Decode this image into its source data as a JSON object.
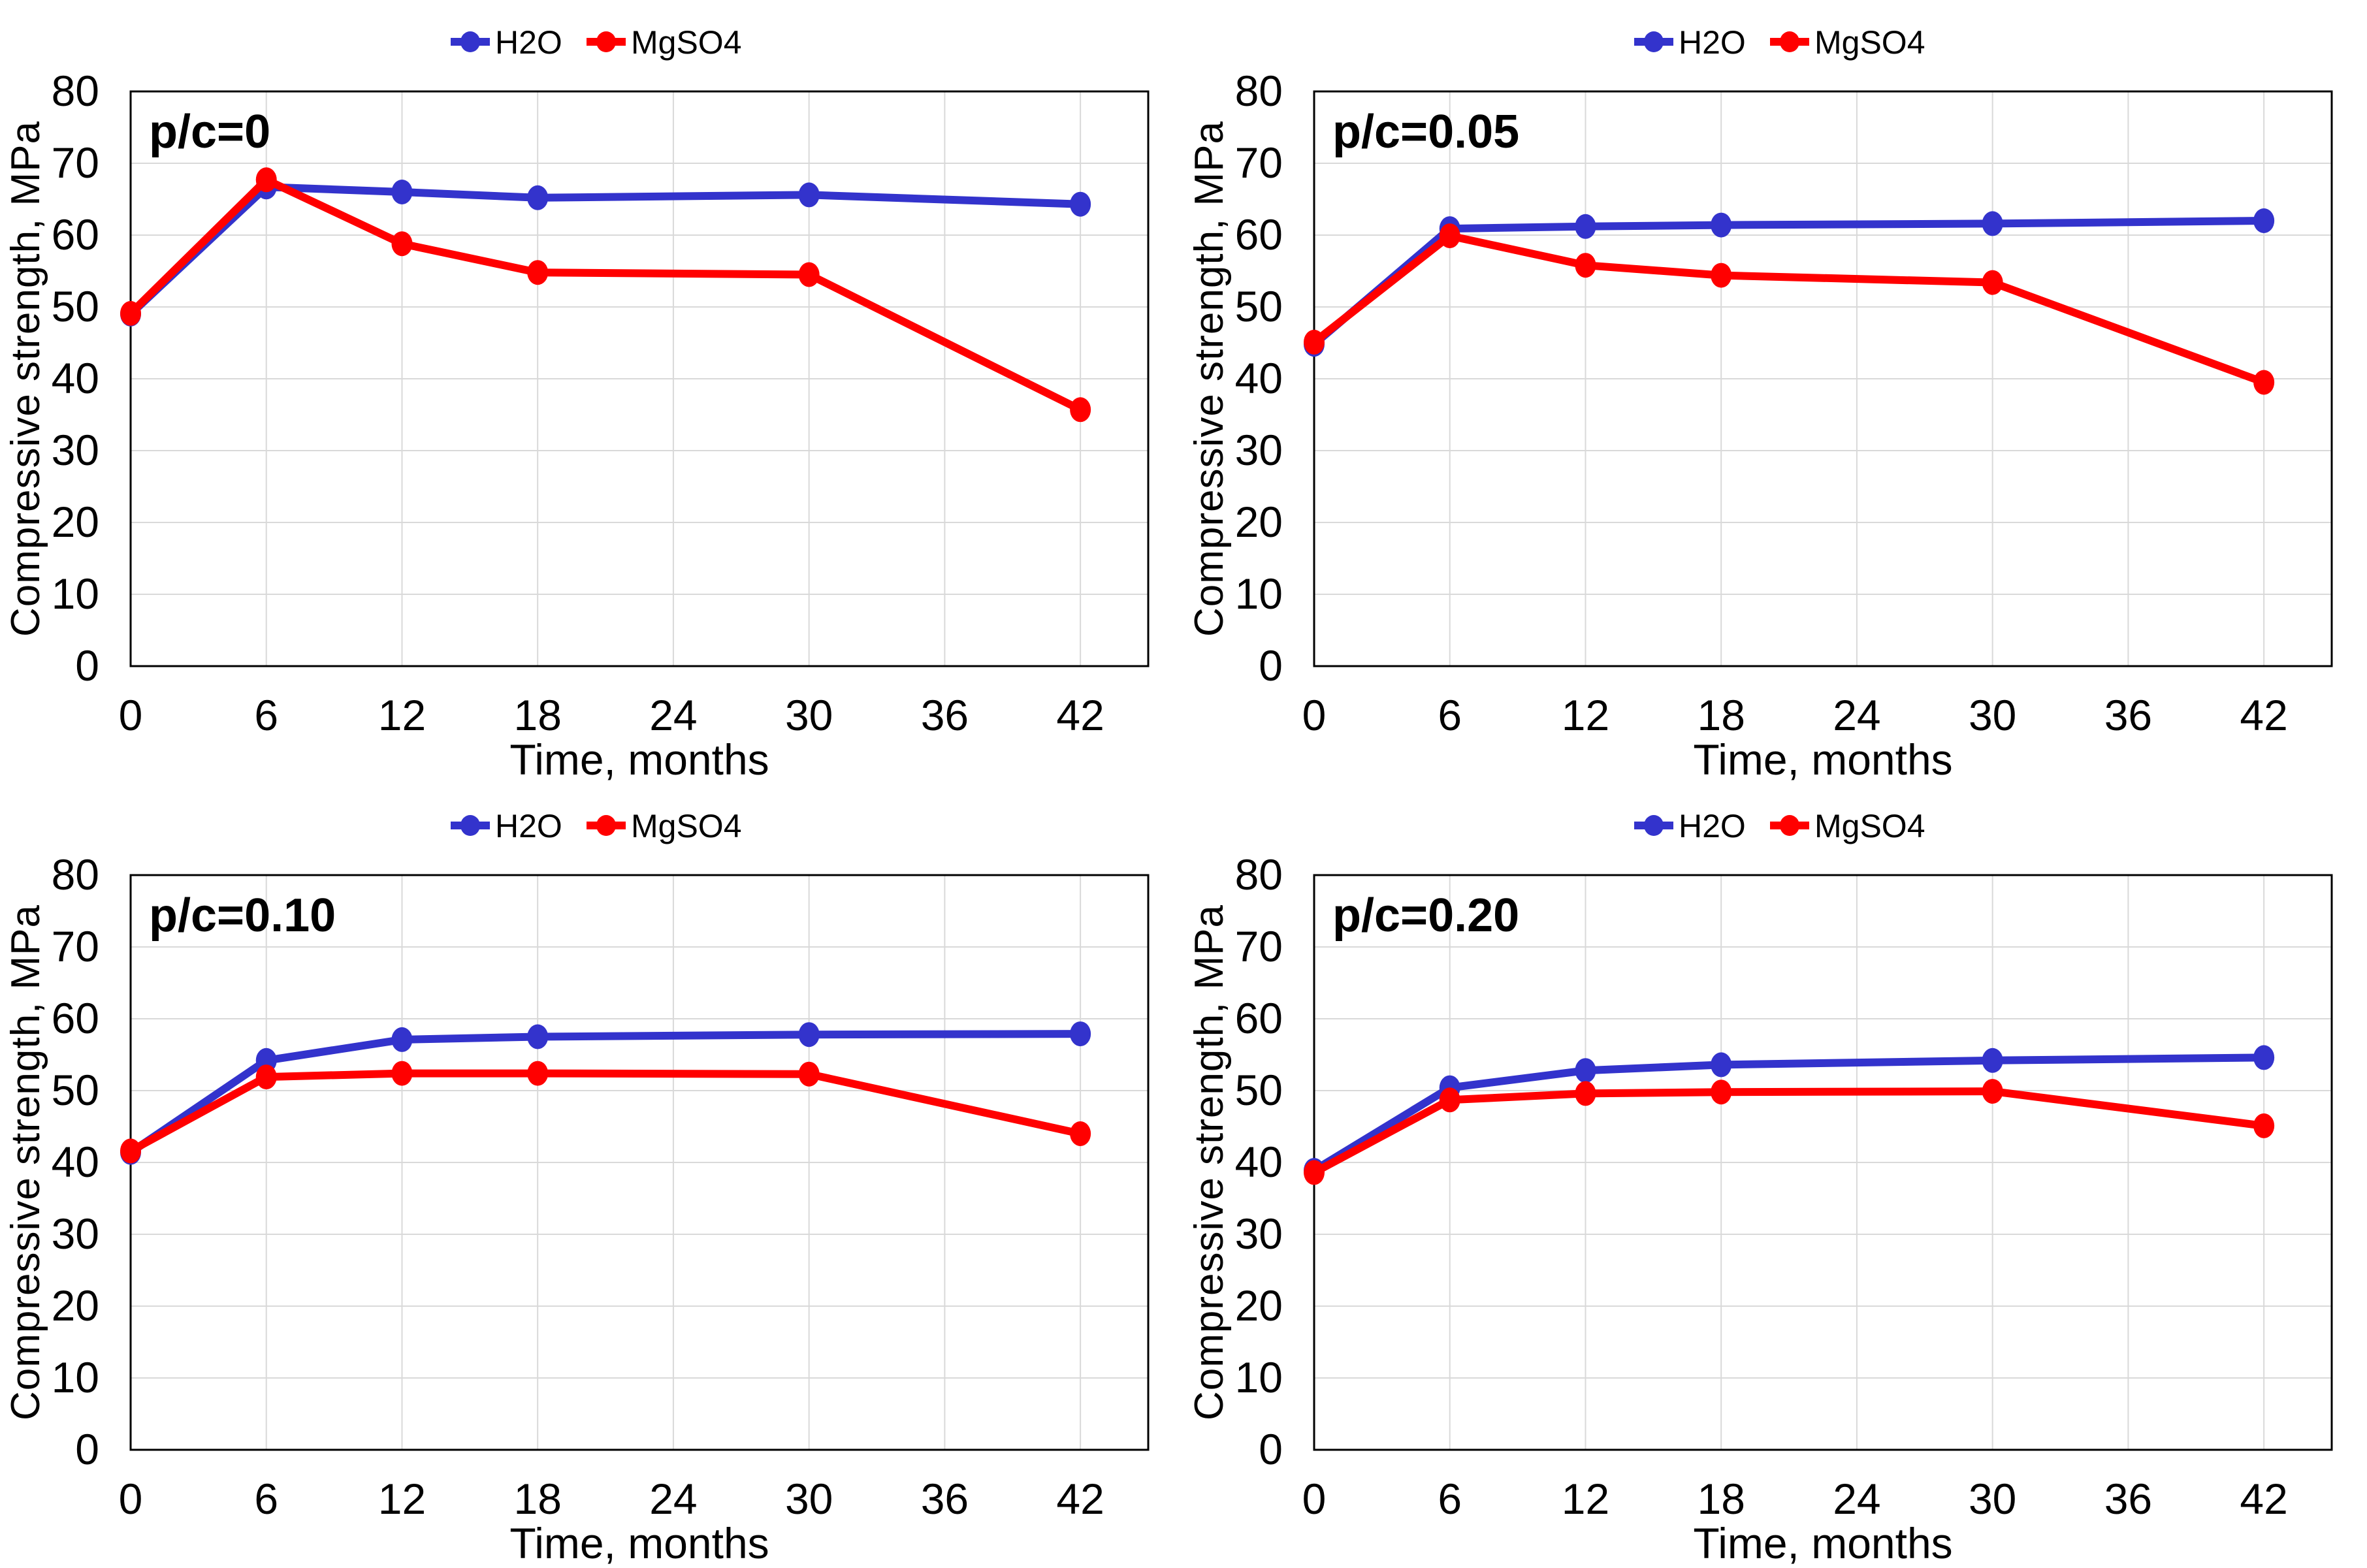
{
  "colors": {
    "h2o": "#3333CC",
    "mgso4": "#FF0000",
    "grid": "#D9D9D9",
    "axis": "#000000",
    "text": "#000000",
    "background": "#FFFFFF"
  },
  "chart_data": [
    {
      "type": "line",
      "panel_label": "p/c=0",
      "xlabel": "Time, months",
      "ylabel": "Compressive strength, MPa",
      "x": [
        0,
        6,
        12,
        18,
        30,
        42
      ],
      "x_ticks": [
        0,
        6,
        12,
        18,
        24,
        30,
        36,
        42
      ],
      "y_ticks": [
        0,
        10,
        20,
        30,
        40,
        50,
        60,
        70,
        80
      ],
      "xlim": [
        0,
        45
      ],
      "ylim": [
        0,
        80
      ],
      "grid": true,
      "legend_position": "top-center",
      "series": [
        {
          "name": "H2O",
          "color": "h2o",
          "values": [
            49.0,
            66.7,
            66.0,
            65.2,
            65.6,
            64.3
          ]
        },
        {
          "name": "MgSO4",
          "color": "mgso4",
          "values": [
            49.1,
            67.7,
            58.8,
            54.8,
            54.5,
            35.7
          ]
        }
      ]
    },
    {
      "type": "line",
      "panel_label": "p/c=0.05",
      "xlabel": "Time, months",
      "ylabel": "Compressive strength, MPa",
      "x": [
        0,
        6,
        12,
        18,
        30,
        42
      ],
      "x_ticks": [
        0,
        6,
        12,
        18,
        24,
        30,
        36,
        42
      ],
      "y_ticks": [
        0,
        10,
        20,
        30,
        40,
        50,
        60,
        70,
        80
      ],
      "xlim": [
        0,
        45
      ],
      "ylim": [
        0,
        80
      ],
      "grid": true,
      "legend_position": "top-center",
      "series": [
        {
          "name": "H2O",
          "color": "h2o",
          "values": [
            44.8,
            60.9,
            61.2,
            61.4,
            61.6,
            62.0
          ]
        },
        {
          "name": "MgSO4",
          "color": "mgso4",
          "values": [
            45.1,
            59.9,
            55.8,
            54.4,
            53.4,
            39.5
          ]
        }
      ]
    },
    {
      "type": "line",
      "panel_label": "p/c=0.10",
      "xlabel": "Time, months",
      "ylabel": "Compressive strength, MPa",
      "x": [
        0,
        6,
        12,
        18,
        30,
        42
      ],
      "x_ticks": [
        0,
        6,
        12,
        18,
        24,
        30,
        36,
        42
      ],
      "y_ticks": [
        0,
        10,
        20,
        30,
        40,
        50,
        60,
        70,
        80
      ],
      "xlim": [
        0,
        45
      ],
      "ylim": [
        0,
        80
      ],
      "grid": true,
      "legend_position": "top-center",
      "series": [
        {
          "name": "H2O",
          "color": "h2o",
          "values": [
            41.4,
            54.2,
            57.1,
            57.5,
            57.8,
            57.9
          ]
        },
        {
          "name": "MgSO4",
          "color": "mgso4",
          "values": [
            41.6,
            51.9,
            52.4,
            52.4,
            52.3,
            44.0
          ]
        }
      ]
    },
    {
      "type": "line",
      "panel_label": "p/c=0.20",
      "xlabel": "Time, months",
      "ylabel": "Compressive strength, MPa",
      "x": [
        0,
        6,
        12,
        18,
        30,
        42
      ],
      "x_ticks": [
        0,
        6,
        12,
        18,
        24,
        30,
        36,
        42
      ],
      "y_ticks": [
        0,
        10,
        20,
        30,
        40,
        50,
        60,
        70,
        80
      ],
      "xlim": [
        0,
        45
      ],
      "ylim": [
        0,
        80
      ],
      "grid": true,
      "legend_position": "top-center",
      "series": [
        {
          "name": "H2O",
          "color": "h2o",
          "values": [
            38.9,
            50.4,
            52.8,
            53.6,
            54.2,
            54.6
          ]
        },
        {
          "name": "MgSO4",
          "color": "mgso4",
          "values": [
            38.6,
            48.7,
            49.6,
            49.8,
            49.9,
            45.1
          ]
        }
      ]
    }
  ]
}
